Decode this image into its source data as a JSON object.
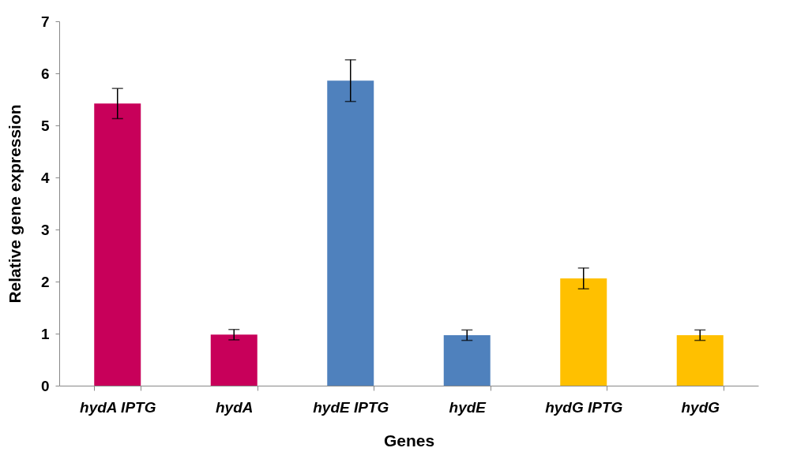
{
  "chart_data": {
    "type": "bar",
    "xlabel": "Genes",
    "ylabel": "Relative gene expression",
    "categories": [
      "hydA IPTG",
      "hydA",
      "hydE IPTG",
      "hydE",
      "hydG IPTG",
      "hydG"
    ],
    "values": [
      5.42,
      0.98,
      5.86,
      0.97,
      2.06,
      0.97
    ],
    "errors": [
      0.29,
      0.1,
      0.4,
      0.1,
      0.2,
      0.1
    ],
    "colors": [
      "#c8005a",
      "#c8005a",
      "#4f81bd",
      "#4f81bd",
      "#ffc000",
      "#ffc000"
    ],
    "ylim": [
      0,
      7
    ],
    "yticks": [
      0,
      1,
      2,
      3,
      4,
      5,
      6,
      7
    ],
    "grid": false,
    "legend": false
  }
}
